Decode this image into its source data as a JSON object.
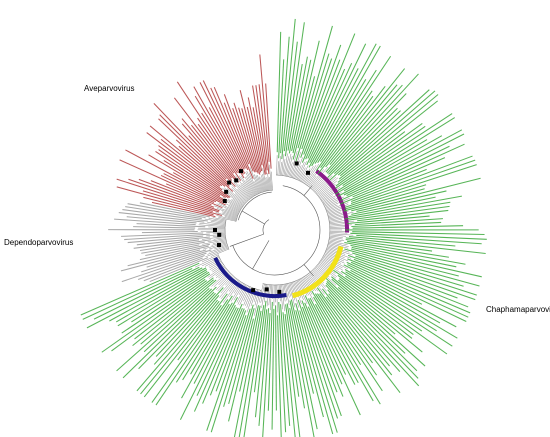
{
  "genera": {
    "aveparvovirus": "Aveparvovirus",
    "dependoparvovirus": "Dependoparvovirus",
    "chaphamaparvovirus": "Chaphamaparvovirus"
  },
  "colors": {
    "aveparvovirus_clade": "#b03a3a",
    "dependoparvovirus_clade": "#9a9a9a",
    "chaphamaparvovirus_clade": "#3aa83a",
    "branch": "#555555",
    "highlight_purple": "#8a1a8a",
    "highlight_yellow": "#f2e21a",
    "highlight_blue": "#1a1a8a",
    "marker": "#000000"
  }
}
